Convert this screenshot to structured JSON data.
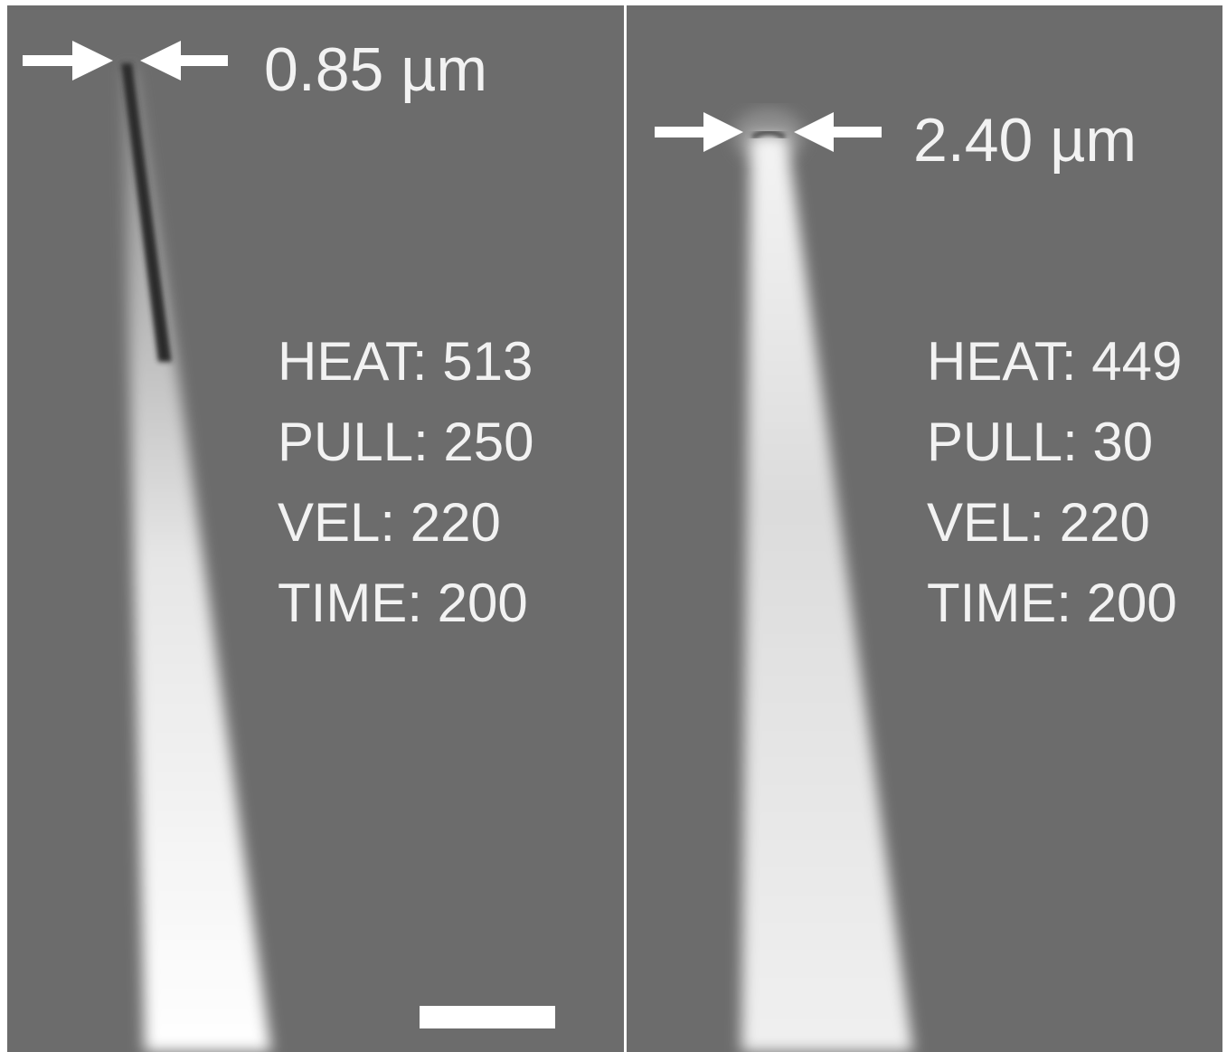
{
  "panels": [
    {
      "tip_label": "0.85 µm",
      "settings": [
        "HEAT: 513",
        "PULL: 250",
        "VEL: 220",
        "TIME: 200"
      ]
    },
    {
      "tip_label": "2.40 µm",
      "settings": [
        "HEAT: 449",
        "PULL: 30",
        "VEL: 220",
        "TIME: 200"
      ]
    }
  ]
}
